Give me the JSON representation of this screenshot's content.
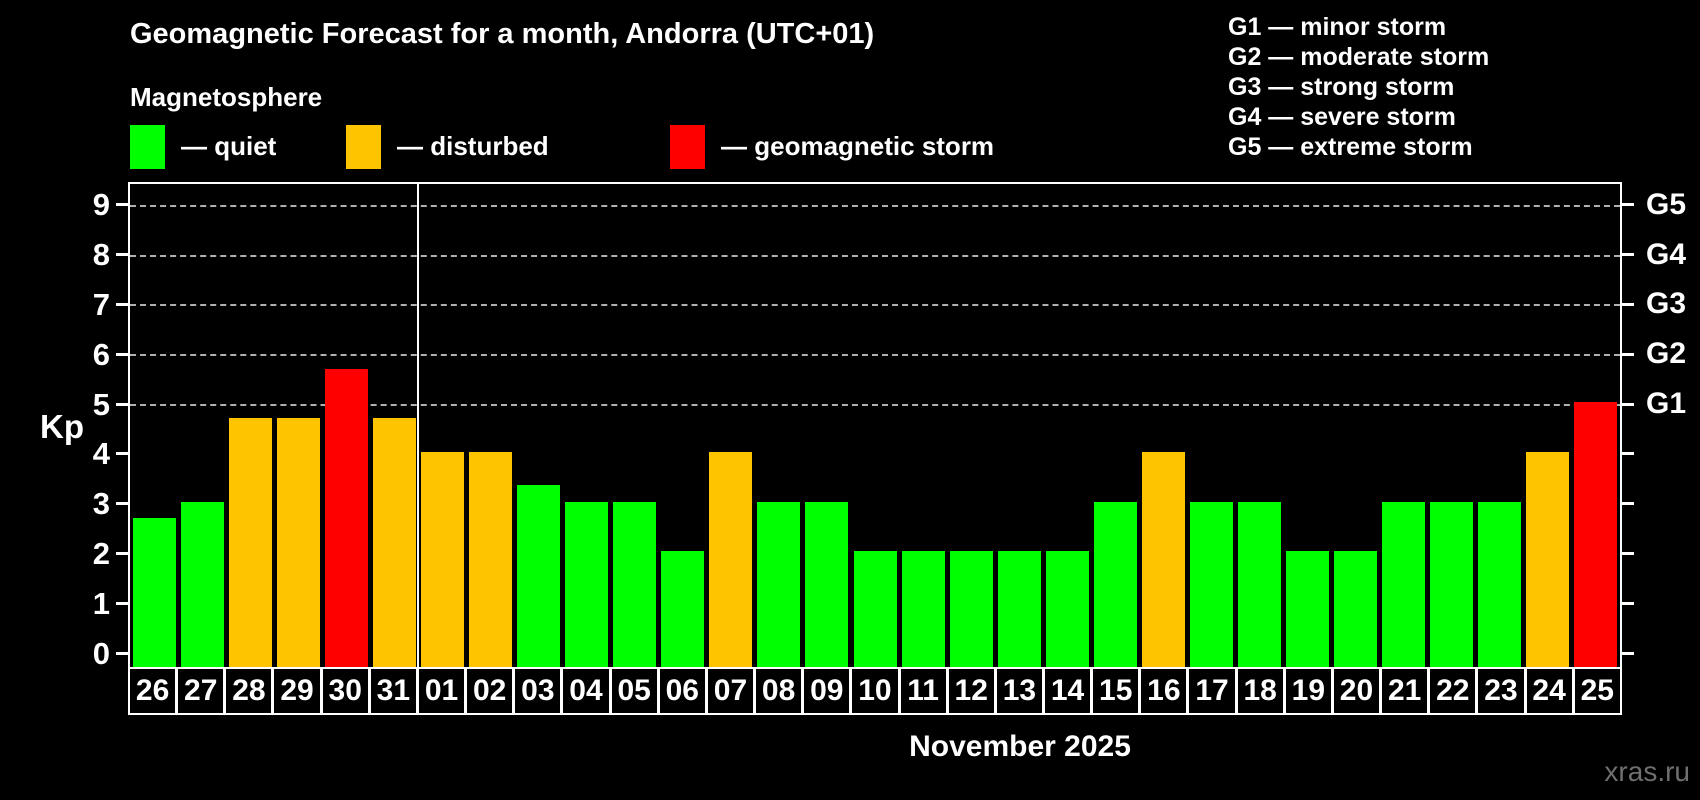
{
  "header": {
    "title": "Geomagnetic Forecast for a month, Andorra (UTC+01)",
    "subtitle": "Magnetosphere"
  },
  "legend": {
    "items": [
      {
        "swatch": "quiet",
        "label": "— quiet"
      },
      {
        "swatch": "disturbed",
        "label": "— disturbed"
      },
      {
        "swatch": "storm",
        "label": "— geomagnetic storm"
      }
    ]
  },
  "g_legend": {
    "items": [
      "G1 — minor storm",
      "G2 — moderate storm",
      "G3 — strong storm",
      "G4 — severe storm",
      "G5 — extreme storm"
    ]
  },
  "chart_data": {
    "type": "bar",
    "title": "Geomagnetic Forecast for a month, Andorra (UTC+01)",
    "subtitle": "Magnetosphere",
    "ylabel": "Kp",
    "xlabel": "November 2025",
    "ylim": [
      0,
      9.7
    ],
    "y_ticks": [
      0,
      1,
      2,
      3,
      4,
      5,
      6,
      7,
      8,
      9
    ],
    "grid_levels": [
      5,
      6,
      7,
      8,
      9
    ],
    "grid": "dashed horizontal lines at Kp 5-9",
    "legend_position": "top-left",
    "categories": [
      "26",
      "27",
      "28",
      "29",
      "30",
      "31",
      "01",
      "02",
      "03",
      "04",
      "05",
      "06",
      "07",
      "08",
      "09",
      "10",
      "11",
      "12",
      "13",
      "14",
      "15",
      "16",
      "17",
      "18",
      "19",
      "20",
      "21",
      "22",
      "23",
      "24",
      "25"
    ],
    "values": [
      2.67,
      3,
      4.67,
      4.67,
      5.67,
      4.67,
      4,
      4,
      3.33,
      3,
      3,
      2,
      4,
      3,
      3,
      2,
      2,
      2,
      2,
      2,
      3,
      4,
      3,
      3,
      2,
      2,
      3,
      3,
      3,
      4,
      5
    ],
    "statuses": [
      "quiet",
      "quiet",
      "disturbed",
      "disturbed",
      "storm",
      "disturbed",
      "disturbed",
      "disturbed",
      "quiet",
      "quiet",
      "quiet",
      "quiet",
      "disturbed",
      "quiet",
      "quiet",
      "quiet",
      "quiet",
      "quiet",
      "quiet",
      "quiet",
      "quiet",
      "disturbed",
      "quiet",
      "quiet",
      "quiet",
      "quiet",
      "quiet",
      "quiet",
      "quiet",
      "disturbed",
      "storm"
    ],
    "month_boundary_index": 6,
    "colors": {
      "quiet": "#00ff00",
      "disturbed": "#ffc400",
      "storm": "#ff0000"
    },
    "right_axis": [
      {
        "kp": 5,
        "label": "G1"
      },
      {
        "kp": 6,
        "label": "G2"
      },
      {
        "kp": 7,
        "label": "G3"
      },
      {
        "kp": 8,
        "label": "G4"
      },
      {
        "kp": 9,
        "label": "G5"
      }
    ]
  },
  "footer": {
    "month_label": "November 2025"
  },
  "watermark": "xras.ru"
}
